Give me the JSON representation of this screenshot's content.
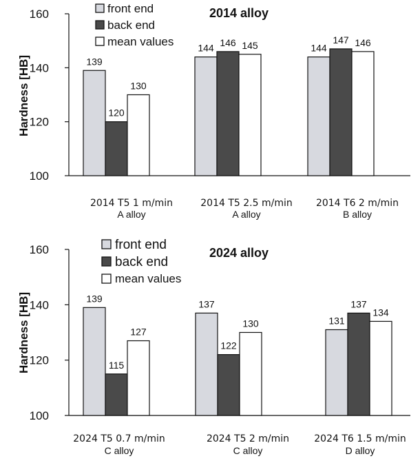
{
  "colors": {
    "front_end": "#d7d9df",
    "back_end": "#4a4a4a",
    "mean_values": "#ffffff",
    "outline": "#111111"
  },
  "chart_data": [
    {
      "type": "bar",
      "title": "2014 alloy",
      "ylabel": "Hardness [HB]",
      "ylim": [
        100,
        160
      ],
      "yticks": [
        "100",
        "120",
        "140",
        "160"
      ],
      "categories": [
        {
          "line1": "2014 T5  1 m/min",
          "line2": "A alloy"
        },
        {
          "line1": "2014 T5  2.5 m/min",
          "line2": "A alloy"
        },
        {
          "line1": "2014 T6  2 m/min",
          "line2": "B alloy"
        }
      ],
      "series": [
        {
          "name": "front end",
          "color_key": "front_end",
          "values": [
            139,
            144,
            144
          ]
        },
        {
          "name": "back end",
          "color_key": "back_end",
          "values": [
            120,
            146,
            147
          ]
        },
        {
          "name": "mean values",
          "color_key": "mean_values",
          "values": [
            130,
            145,
            146
          ]
        }
      ],
      "legend_position": "top-left",
      "grid": false
    },
    {
      "type": "bar",
      "title": "2024 alloy",
      "ylabel": "Hardness [HB]",
      "ylim": [
        100,
        160
      ],
      "yticks": [
        "100",
        "120",
        "140",
        "160"
      ],
      "categories": [
        {
          "line1": "2024 T5  0.7 m/min",
          "line2": "C alloy"
        },
        {
          "line1": "2024 T5  2 m/min",
          "line2": "C alloy"
        },
        {
          "line1": "2024 T6  1.5 m/min",
          "line2": "D alloy"
        }
      ],
      "series": [
        {
          "name": "front end",
          "color_key": "front_end",
          "values": [
            139,
            137,
            131
          ]
        },
        {
          "name": "back end",
          "color_key": "back_end",
          "values": [
            115,
            122,
            137
          ]
        },
        {
          "name": "mean values",
          "color_key": "mean_values",
          "values": [
            127,
            130,
            134
          ]
        }
      ],
      "legend_position": "top-left",
      "grid": false
    }
  ]
}
